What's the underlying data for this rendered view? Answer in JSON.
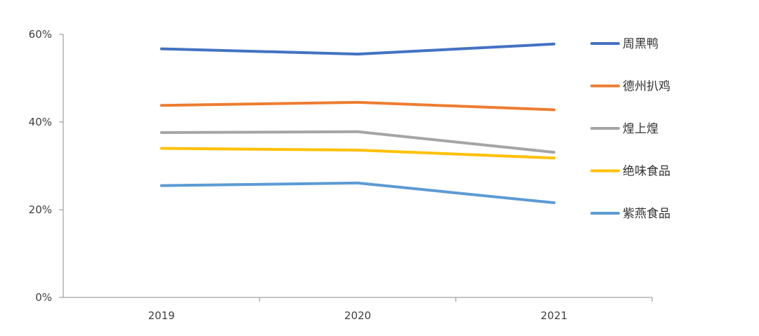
{
  "chart_data": {
    "type": "line",
    "title": "",
    "xlabel": "",
    "ylabel": "",
    "categories": [
      "2019",
      "2020",
      "2021"
    ],
    "y_tick_labels": [
      "0%",
      "20%",
      "40%",
      "60%"
    ],
    "ylim": [
      0,
      60
    ],
    "grid": false,
    "legend_position": "right",
    "series": [
      {
        "name": "周黑鸭",
        "color": "#4472C4",
        "values": [
          56.7,
          55.5,
          57.8
        ]
      },
      {
        "name": "德州扒鸡",
        "color": "#ED7D31",
        "values": [
          43.8,
          44.5,
          42.8
        ]
      },
      {
        "name": "煌上煌",
        "color": "#A5A5A5",
        "values": [
          37.6,
          37.8,
          33.1
        ]
      },
      {
        "name": "绝味食品",
        "color": "#FFC000",
        "values": [
          34.0,
          33.6,
          31.8
        ]
      },
      {
        "name": "紫燕食品",
        "color": "#5B9BD5",
        "values": [
          25.5,
          26.1,
          21.6
        ]
      }
    ]
  }
}
